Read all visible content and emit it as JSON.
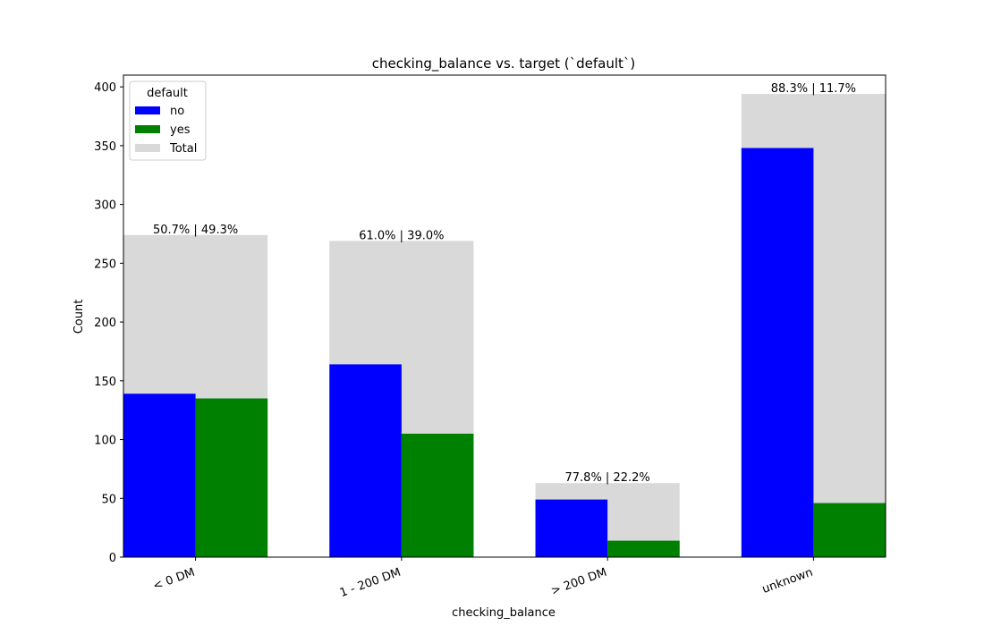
{
  "chart_data": {
    "type": "bar",
    "title": "checking_balance vs. target (`default`)",
    "xlabel": "checking_balance",
    "ylabel": "Count",
    "categories": [
      "< 0 DM",
      "1 - 200 DM",
      "> 200 DM",
      "unknown"
    ],
    "series": [
      {
        "name": "no",
        "color": "#0000ff",
        "values": [
          139,
          164,
          49,
          348
        ]
      },
      {
        "name": "yes",
        "color": "#008000",
        "values": [
          135,
          105,
          14,
          46
        ]
      },
      {
        "name": "Total",
        "color": "#d9d9d9",
        "values": [
          274,
          269,
          63,
          394
        ]
      }
    ],
    "bar_labels": [
      "50.7% | 49.3%",
      "61.0% | 39.0%",
      "77.8% | 22.2%",
      "88.3% | 11.7%"
    ],
    "ylim": [
      0,
      410
    ],
    "yticks": [
      0,
      50,
      100,
      150,
      200,
      250,
      300,
      350,
      400
    ],
    "legend": {
      "title": "default",
      "placement": "top-left",
      "entries": [
        "no",
        "yes",
        "Total"
      ]
    },
    "grid": false,
    "xtick_rotation_deg": -20
  }
}
